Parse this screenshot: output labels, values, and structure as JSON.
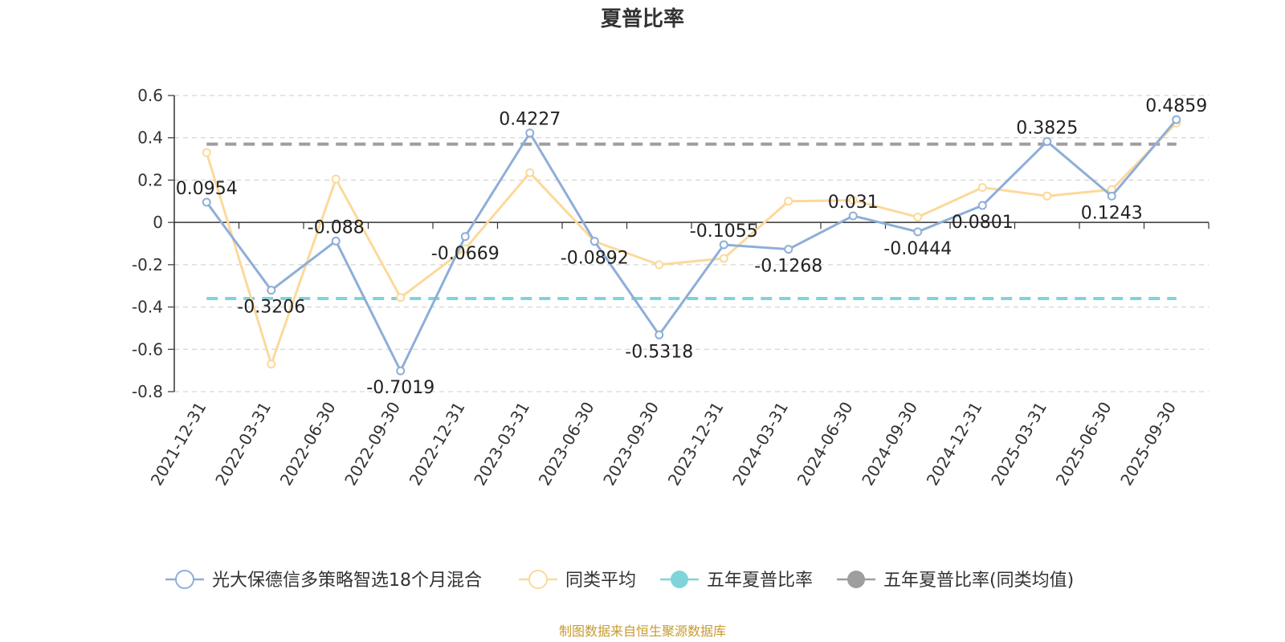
{
  "chart_data": {
    "type": "line",
    "title": "夏普比率",
    "xlabel": "",
    "ylabel": "",
    "categories": [
      "2021-12-31",
      "2022-03-31",
      "2022-06-30",
      "2022-09-30",
      "2022-12-31",
      "2023-03-31",
      "2023-06-30",
      "2023-09-30",
      "2023-12-31",
      "2024-03-31",
      "2024-06-30",
      "2024-09-30",
      "2024-12-31",
      "2025-03-31",
      "2025-06-30",
      "2025-09-30"
    ],
    "ylim": [
      -0.8,
      0.6
    ],
    "yticks": [
      0.6,
      0.4,
      0.2,
      0,
      -0.2,
      -0.4,
      -0.6,
      -0.8
    ],
    "ytick_labels": [
      "0.6",
      "0.4",
      "0.2",
      "0",
      "-0.2",
      "-0.4",
      "-0.6",
      "-0.8"
    ],
    "grid": true,
    "legend_position": "bottom",
    "series": [
      {
        "name": "光大保德信多策略智选18个月混合",
        "color": "#8eaed8",
        "values": [
          0.0954,
          -0.3206,
          -0.088,
          -0.7019,
          -0.0669,
          0.4227,
          -0.0892,
          -0.5318,
          -0.1055,
          -0.1268,
          0.031,
          -0.0444,
          0.0801,
          0.3825,
          0.1243,
          0.4859
        ],
        "labels": [
          "0.0954",
          "-0.3206",
          "-0.088",
          "-0.7019",
          "-0.0669",
          "0.4227",
          "-0.0892",
          "-0.5318",
          "-0.1055",
          "-0.1268",
          "0.031",
          "-0.0444",
          "0.0801",
          "0.3825",
          "0.1243",
          "0.4859"
        ]
      },
      {
        "name": "同类平均",
        "color": "#fcd99a",
        "values": [
          0.33,
          -0.67,
          0.205,
          -0.355,
          -0.125,
          0.235,
          -0.09,
          -0.2,
          -0.17,
          0.1,
          0.105,
          0.025,
          0.165,
          0.125,
          0.155,
          0.47
        ]
      }
    ],
    "reference_lines": [
      {
        "name": "五年夏普比率",
        "color": "#7fd4da",
        "value": -0.36
      },
      {
        "name": "五年夏普比率(同类均值)",
        "color": "#9e9e9e",
        "value": 0.37
      }
    ],
    "legend": [
      {
        "name": "光大保德信多策略智选18个月混合",
        "color": "#8eaed8",
        "marker": "hollow"
      },
      {
        "name": "同类平均",
        "color": "#fcd99a",
        "marker": "hollow"
      },
      {
        "name": "五年夏普比率",
        "color": "#7fd4da",
        "marker": "filled"
      },
      {
        "name": "五年夏普比率(同类均值)",
        "color": "#9e9e9e",
        "marker": "filled"
      }
    ],
    "source": "制图数据来自恒生聚源数据库"
  }
}
